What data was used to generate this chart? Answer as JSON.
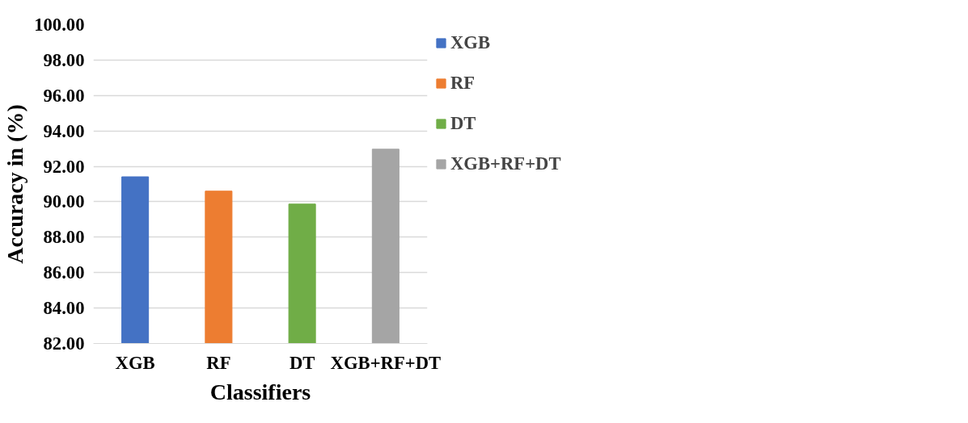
{
  "chart_data": {
    "type": "bar",
    "xlabel": "Classifiers",
    "ylabel": "Accuracy in (%)",
    "categories": [
      "XGB",
      "RF",
      "DT",
      "XGB+RF+DT"
    ],
    "series": [
      {
        "name": "XGB",
        "color": "#4472c4",
        "values": [
          91.41,
          null,
          null,
          null
        ]
      },
      {
        "name": "RF",
        "color": "#ed7d31",
        "values": [
          null,
          90.6,
          null,
          null
        ]
      },
      {
        "name": "DT",
        "color": "#70ad47",
        "values": [
          null,
          null,
          89.87,
          null
        ]
      },
      {
        "name": "XGB+RF+DT",
        "color": "#a5a5a5",
        "values": [
          null,
          null,
          null,
          92.97
        ]
      }
    ],
    "ylim": [
      82,
      100
    ],
    "yticks": [
      {
        "value": 82,
        "label": "82.00"
      },
      {
        "value": 84,
        "label": "84.00"
      },
      {
        "value": 86,
        "label": "86.00"
      },
      {
        "value": 88,
        "label": "88.00"
      },
      {
        "value": 90,
        "label": "90.00"
      },
      {
        "value": 92,
        "label": "92.00"
      },
      {
        "value": 94,
        "label": "94.00"
      },
      {
        "value": 96,
        "label": "96.00"
      },
      {
        "value": 98,
        "label": "98.00"
      },
      {
        "value": 100,
        "label": "100.00"
      }
    ],
    "grid": "y",
    "legend": "right"
  }
}
